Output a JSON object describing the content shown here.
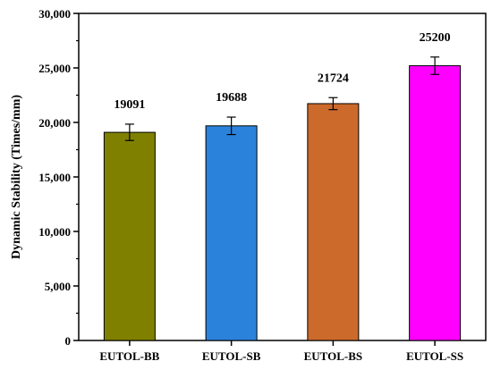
{
  "chart_data": {
    "type": "bar",
    "categories": [
      "EUTOL-BB",
      "EUTOL-SB",
      "EUTOL-BS",
      "EUTOL-SS"
    ],
    "values": [
      19091,
      19688,
      21724,
      25200
    ],
    "errors": [
      750,
      800,
      550,
      800
    ],
    "data_labels": [
      "19091",
      "19688",
      "21724",
      "25200"
    ],
    "colors": [
      "#808000",
      "#2b82db",
      "#cc6a2c",
      "#ff00ff"
    ],
    "title": "",
    "xlabel": "",
    "ylabel": "Dynamic Stability (Times/mm)",
    "ylim": [
      0,
      30000
    ],
    "yticks": [
      0,
      5000,
      10000,
      15000,
      20000,
      25000,
      30000
    ],
    "ytick_labels": [
      "0",
      "5,000",
      "10,000",
      "15,000",
      "20,000",
      "25,000",
      "30,000"
    ],
    "grid": false,
    "legend": "none"
  }
}
